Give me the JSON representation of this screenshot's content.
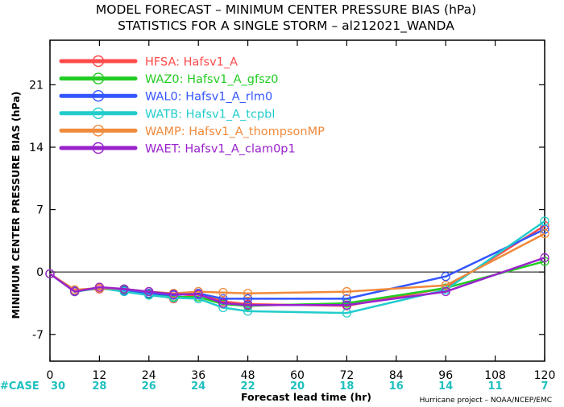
{
  "header": {
    "line1": "MODEL FORECAST – MINIMUM CENTER PRESSURE BIAS (hPa)",
    "line2": "STATISTICS FOR A SINGLE STORM – al212021_WANDA"
  },
  "footer": {
    "case_label": "#CASE",
    "credit": "Hurricane project – NOAA/NCEP/EMC"
  },
  "chart_data": {
    "type": "line",
    "xlabel": "Forecast lead time (hr)",
    "ylabel": "MINIMUM CENTER PRESSURE BIAS (hPa)",
    "xlim": [
      0,
      120
    ],
    "ylim": [
      -10,
      26
    ],
    "xticks": [
      0,
      12,
      24,
      36,
      48,
      60,
      72,
      84,
      96,
      108,
      120
    ],
    "yticks": [
      -7,
      0,
      7,
      14,
      21
    ],
    "grid": false,
    "legend_position": "top-left",
    "zero_line": true,
    "case_counts": [
      30,
      28,
      26,
      24,
      22,
      20,
      18,
      16,
      14,
      11,
      7
    ],
    "x": [
      0,
      6,
      12,
      18,
      24,
      30,
      36,
      42,
      48,
      72,
      96,
      120
    ],
    "series": [
      {
        "code": "HFSA:",
        "name": "Hafsv1_A",
        "color": "#ff4a4a",
        "values": [
          -0.2,
          -2.1,
          -1.9,
          -2.0,
          -2.4,
          -3.0,
          -2.5,
          -3.3,
          -3.6,
          -3.8,
          -1.8,
          5.2
        ]
      },
      {
        "code": "WAZ0:",
        "name": "Hafsv1_A_gfsz0",
        "color": "#22cc22",
        "values": [
          -0.2,
          -2.2,
          -1.8,
          -2.0,
          -2.5,
          -2.8,
          -2.8,
          -3.6,
          -3.8,
          -3.5,
          -1.8,
          1.2
        ]
      },
      {
        "code": "WAL0:",
        "name": "Hafsv1_A_rlm0",
        "color": "#3355ff",
        "values": [
          -0.2,
          -2.1,
          -1.8,
          -2.1,
          -2.4,
          -2.6,
          -2.4,
          -3.0,
          -3.0,
          -3.0,
          -0.5,
          4.8
        ]
      },
      {
        "code": "WATB:",
        "name": "Hafsv1_A_tcpbl",
        "color": "#22cccc",
        "values": [
          -0.2,
          -2.2,
          -1.8,
          -2.2,
          -2.6,
          -2.9,
          -3.0,
          -4.0,
          -4.4,
          -4.6,
          -2.0,
          5.7
        ]
      },
      {
        "code": "WAMP:",
        "name": "Hafsv1_A_thompsonMP",
        "color": "#f08a3c",
        "values": [
          -0.2,
          -2.0,
          -1.8,
          -1.9,
          -2.2,
          -2.4,
          -2.2,
          -2.3,
          -2.4,
          -2.2,
          -1.5,
          4.3
        ]
      },
      {
        "code": "WAET:",
        "name": "Hafsv1_A_clam0p1",
        "color": "#9922cc",
        "values": [
          -0.2,
          -2.2,
          -1.7,
          -1.9,
          -2.2,
          -2.5,
          -2.5,
          -3.5,
          -3.7,
          -3.7,
          -2.2,
          1.6
        ]
      }
    ]
  }
}
